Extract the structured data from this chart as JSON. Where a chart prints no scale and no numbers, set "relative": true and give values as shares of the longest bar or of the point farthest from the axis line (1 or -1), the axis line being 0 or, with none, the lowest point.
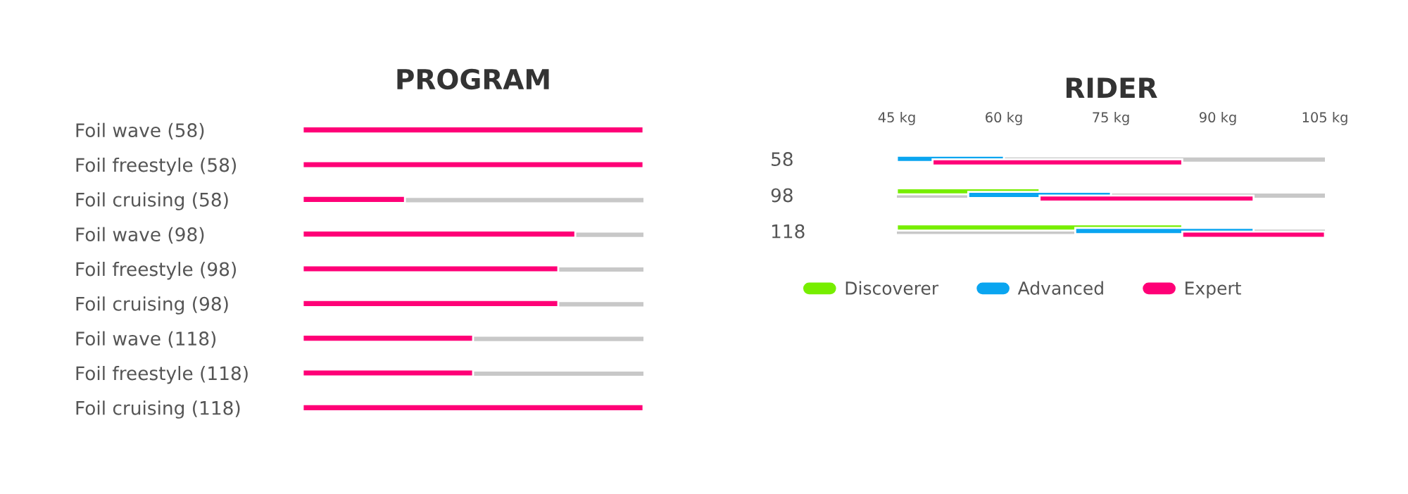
{
  "chart_data": [
    {
      "type": "bar",
      "title": "PROGRAM",
      "orientation": "horizontal",
      "relative": true,
      "tick_labels": "y",
      "categories": [
        "Foil wave (58)",
        "Foil freestyle (58)",
        "Foil cruising (58)",
        "Foil wave (98)",
        "Foil freestyle (98)",
        "Foil cruising (98)",
        "Foil wave (118)",
        "Foil freestyle (118)",
        "Foil cruising (118)"
      ],
      "values": [
        1,
        1,
        0.3,
        0.8,
        0.75,
        0.75,
        0.5,
        0.5,
        1
      ],
      "color": "#ff0077"
    },
    {
      "type": "bar",
      "title": "RIDER",
      "orientation": "horizontal",
      "legend": "bottom",
      "categories": [
        "58",
        "98",
        "118"
      ],
      "xlim": [
        45,
        105
      ],
      "xticks": [
        {
          "value": 45,
          "label": "45 kg"
        },
        {
          "value": 60,
          "label": "60 kg"
        },
        {
          "value": 75,
          "label": "75 kg"
        },
        {
          "value": 90,
          "label": "90 kg"
        },
        {
          "value": 105,
          "label": "105 kg"
        }
      ],
      "series": [
        {
          "name": "Discoverer",
          "color": "#77ee00",
          "values": [
            null,
            20,
            40
          ],
          "base": [
            null,
            45,
            45
          ]
        },
        {
          "name": "Advanced",
          "color": "#0aa5f0",
          "values": [
            15,
            20,
            25
          ],
          "base": [
            45,
            55,
            70
          ]
        },
        {
          "name": "Expert",
          "color": "#ff0077",
          "values": [
            35,
            30,
            20
          ],
          "base": [
            50,
            65,
            85
          ]
        }
      ]
    }
  ]
}
